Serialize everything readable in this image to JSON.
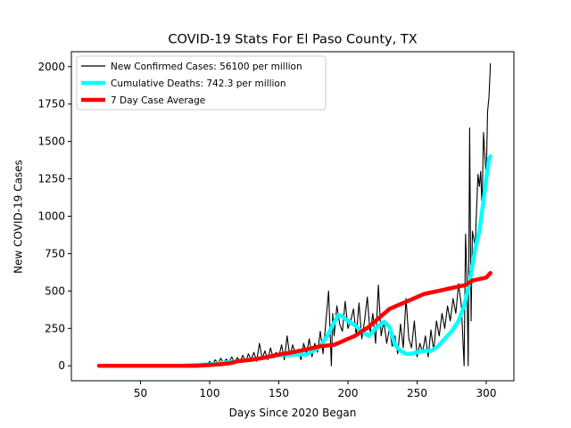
{
  "chart_data": {
    "type": "line",
    "title": "COVID-19 Stats For El Paso County, TX",
    "xlabel": "Days Since 2020 Began",
    "ylabel": "New COVID-19 Cases",
    "xlim": [
      0,
      320
    ],
    "ylim": [
      -100,
      2100
    ],
    "xticks": [
      50,
      100,
      150,
      200,
      250,
      300
    ],
    "yticks": [
      0,
      250,
      500,
      750,
      1000,
      1250,
      1500,
      1750,
      2000
    ],
    "grid": false,
    "legend_position": "top-left",
    "series": [
      {
        "name": "New Confirmed Cases: 56100 per million",
        "color": "#000000",
        "style": "thin",
        "points": [
          [
            20,
            0
          ],
          [
            80,
            0
          ],
          [
            85,
            2
          ],
          [
            88,
            5
          ],
          [
            90,
            3
          ],
          [
            92,
            12
          ],
          [
            94,
            5
          ],
          [
            96,
            20
          ],
          [
            98,
            8
          ],
          [
            100,
            30
          ],
          [
            102,
            10
          ],
          [
            104,
            40
          ],
          [
            106,
            15
          ],
          [
            108,
            50
          ],
          [
            110,
            20
          ],
          [
            112,
            45
          ],
          [
            114,
            25
          ],
          [
            116,
            60
          ],
          [
            118,
            20
          ],
          [
            120,
            55
          ],
          [
            122,
            30
          ],
          [
            124,
            70
          ],
          [
            126,
            25
          ],
          [
            128,
            80
          ],
          [
            130,
            40
          ],
          [
            132,
            90
          ],
          [
            134,
            30
          ],
          [
            136,
            150
          ],
          [
            138,
            50
          ],
          [
            140,
            100
          ],
          [
            142,
            40
          ],
          [
            144,
            120
          ],
          [
            146,
            50
          ],
          [
            148,
            90
          ],
          [
            150,
            60
          ],
          [
            152,
            140
          ],
          [
            154,
            40
          ],
          [
            156,
            200
          ],
          [
            158,
            60
          ],
          [
            160,
            140
          ],
          [
            162,
            80
          ],
          [
            164,
            110
          ],
          [
            166,
            40
          ],
          [
            168,
            150
          ],
          [
            170,
            80
          ],
          [
            172,
            180
          ],
          [
            174,
            60
          ],
          [
            176,
            150
          ],
          [
            178,
            90
          ],
          [
            180,
            230
          ],
          [
            182,
            80
          ],
          [
            184,
            290
          ],
          [
            186,
            500
          ],
          [
            188,
            0
          ],
          [
            189,
            350
          ],
          [
            190,
            200
          ],
          [
            192,
            400
          ],
          [
            194,
            280
          ],
          [
            196,
            230
          ],
          [
            198,
            430
          ],
          [
            200,
            250
          ],
          [
            202,
            300
          ],
          [
            204,
            380
          ],
          [
            206,
            200
          ],
          [
            208,
            420
          ],
          [
            210,
            180
          ],
          [
            212,
            300
          ],
          [
            214,
            460
          ],
          [
            216,
            220
          ],
          [
            218,
            350
          ],
          [
            220,
            150
          ],
          [
            222,
            540
          ],
          [
            224,
            200
          ],
          [
            226,
            300
          ],
          [
            228,
            150
          ],
          [
            230,
            250
          ],
          [
            232,
            130
          ],
          [
            234,
            200
          ],
          [
            236,
            80
          ],
          [
            238,
            280
          ],
          [
            240,
            120
          ],
          [
            242,
            450
          ],
          [
            244,
            180
          ],
          [
            246,
            120
          ],
          [
            248,
            300
          ],
          [
            250,
            60
          ],
          [
            252,
            150
          ],
          [
            254,
            90
          ],
          [
            256,
            200
          ],
          [
            258,
            60
          ],
          [
            260,
            240
          ],
          [
            262,
            100
          ],
          [
            264,
            300
          ],
          [
            266,
            200
          ],
          [
            268,
            350
          ],
          [
            270,
            250
          ],
          [
            272,
            400
          ],
          [
            274,
            300
          ],
          [
            276,
            450
          ],
          [
            278,
            350
          ],
          [
            280,
            550
          ],
          [
            282,
            400
          ],
          [
            284,
            0
          ],
          [
            285,
            880
          ],
          [
            286,
            600
          ],
          [
            287,
            0
          ],
          [
            288,
            1590
          ],
          [
            289,
            300
          ],
          [
            290,
            900
          ],
          [
            292,
            800
          ],
          [
            294,
            1280
          ],
          [
            295,
            1200
          ],
          [
            296,
            1300
          ],
          [
            297,
            1050
          ],
          [
            298,
            1560
          ],
          [
            299,
            1400
          ],
          [
            300,
            1250
          ],
          [
            301,
            1700
          ],
          [
            302,
            1800
          ],
          [
            303,
            2020
          ]
        ]
      },
      {
        "name": "Cumulative Deaths: 742.3 per million",
        "color": "#00ffff",
        "style": "thick",
        "points": [
          [
            20,
            0
          ],
          [
            80,
            0
          ],
          [
            90,
            5
          ],
          [
            100,
            10
          ],
          [
            110,
            20
          ],
          [
            120,
            30
          ],
          [
            130,
            40
          ],
          [
            140,
            55
          ],
          [
            150,
            70
          ],
          [
            160,
            75
          ],
          [
            170,
            75
          ],
          [
            175,
            100
          ],
          [
            180,
            130
          ],
          [
            185,
            200
          ],
          [
            190,
            290
          ],
          [
            193,
            340
          ],
          [
            196,
            330
          ],
          [
            200,
            300
          ],
          [
            205,
            270
          ],
          [
            210,
            230
          ],
          [
            215,
            200
          ],
          [
            220,
            250
          ],
          [
            226,
            295
          ],
          [
            230,
            260
          ],
          [
            234,
            140
          ],
          [
            238,
            100
          ],
          [
            242,
            80
          ],
          [
            246,
            80
          ],
          [
            250,
            90
          ],
          [
            255,
            100
          ],
          [
            260,
            100
          ],
          [
            265,
            130
          ],
          [
            270,
            180
          ],
          [
            275,
            230
          ],
          [
            280,
            300
          ],
          [
            284,
            400
          ],
          [
            288,
            560
          ],
          [
            292,
            780
          ],
          [
            295,
            900
          ],
          [
            298,
            1100
          ],
          [
            300,
            1250
          ],
          [
            302,
            1380
          ],
          [
            303,
            1400
          ]
        ]
      },
      {
        "name": "7 Day Case Average",
        "color": "#ff0000",
        "style": "thick",
        "points": [
          [
            20,
            0
          ],
          [
            90,
            0
          ],
          [
            100,
            5
          ],
          [
            110,
            12
          ],
          [
            115,
            18
          ],
          [
            120,
            30
          ],
          [
            130,
            40
          ],
          [
            140,
            55
          ],
          [
            150,
            75
          ],
          [
            160,
            90
          ],
          [
            170,
            110
          ],
          [
            180,
            130
          ],
          [
            190,
            140
          ],
          [
            195,
            160
          ],
          [
            200,
            180
          ],
          [
            205,
            200
          ],
          [
            210,
            230
          ],
          [
            215,
            260
          ],
          [
            220,
            300
          ],
          [
            225,
            340
          ],
          [
            230,
            380
          ],
          [
            235,
            400
          ],
          [
            240,
            420
          ],
          [
            245,
            440
          ],
          [
            250,
            460
          ],
          [
            255,
            480
          ],
          [
            260,
            490
          ],
          [
            265,
            500
          ],
          [
            270,
            510
          ],
          [
            275,
            520
          ],
          [
            280,
            530
          ],
          [
            285,
            540
          ],
          [
            290,
            570
          ],
          [
            295,
            580
          ],
          [
            300,
            590
          ],
          [
            303,
            620
          ]
        ]
      }
    ]
  }
}
